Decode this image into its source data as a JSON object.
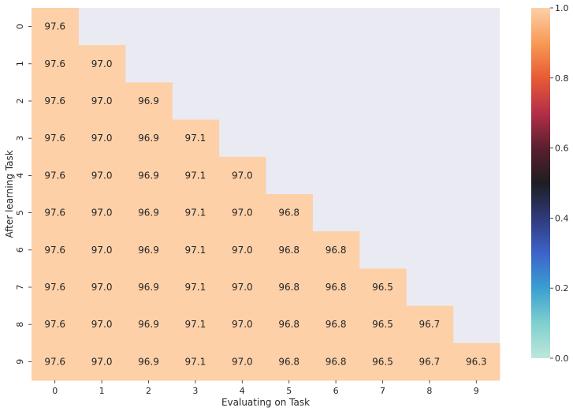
{
  "chart_data": {
    "type": "heatmap",
    "xlabel": "Evaluating on Task",
    "ylabel": "After learning Task",
    "x_categories": [
      "0",
      "1",
      "2",
      "3",
      "4",
      "5",
      "6",
      "7",
      "8",
      "9"
    ],
    "y_categories": [
      "0",
      "1",
      "2",
      "3",
      "4",
      "5",
      "6",
      "7",
      "8",
      "9"
    ],
    "row_values": [
      97.6,
      97.0,
      96.9,
      97.1,
      97.0,
      96.8,
      96.8,
      96.5,
      96.7,
      96.3
    ],
    "mask": "upper-triangle-above-diagonal",
    "cell_labels": [
      [
        "97.6"
      ],
      [
        "97.6",
        "97.0"
      ],
      [
        "97.6",
        "97.0",
        "96.9"
      ],
      [
        "97.6",
        "97.0",
        "96.9",
        "97.1"
      ],
      [
        "97.6",
        "97.0",
        "96.9",
        "97.1",
        "97.0"
      ],
      [
        "97.6",
        "97.0",
        "96.9",
        "97.1",
        "97.0",
        "96.8"
      ],
      [
        "97.6",
        "97.0",
        "96.9",
        "97.1",
        "97.0",
        "96.8",
        "96.8"
      ],
      [
        "97.6",
        "97.0",
        "96.9",
        "97.1",
        "97.0",
        "96.8",
        "96.8",
        "96.5"
      ],
      [
        "97.6",
        "97.0",
        "96.9",
        "97.1",
        "97.0",
        "96.8",
        "96.8",
        "96.5",
        "96.7"
      ],
      [
        "97.6",
        "97.0",
        "96.9",
        "97.1",
        "97.0",
        "96.8",
        "96.8",
        "96.5",
        "96.7",
        "96.3"
      ]
    ],
    "colorbar": {
      "ticks": [
        "0.0",
        "0.2",
        "0.4",
        "0.6",
        "0.8",
        "1.0"
      ],
      "vmin": 0.0,
      "vmax": 1.0,
      "colormap": "icefire"
    },
    "colors": {
      "cell_fill": "#fdd0a8",
      "masked_bg": "#eaeaf2",
      "cell_text": "#262626",
      "tick_text": "#262626"
    }
  }
}
